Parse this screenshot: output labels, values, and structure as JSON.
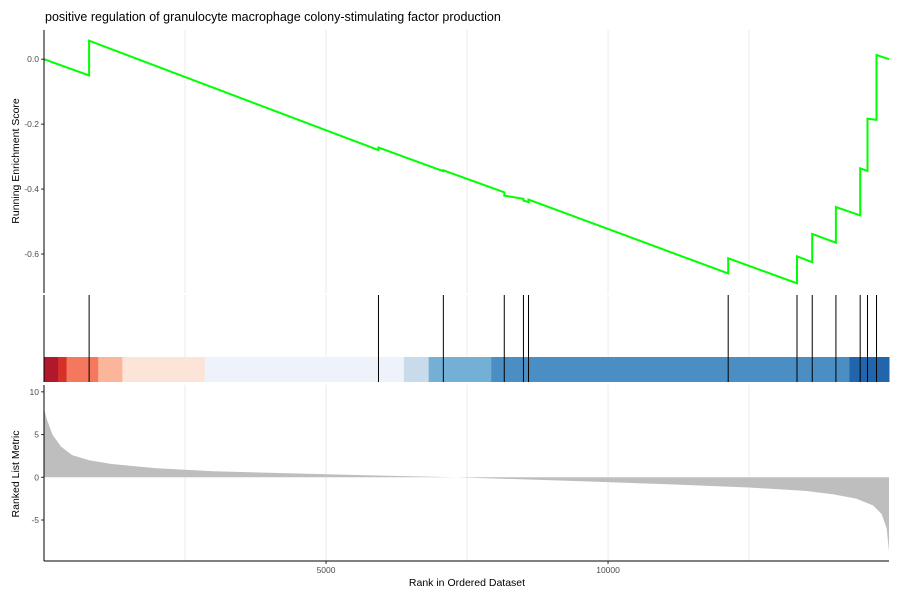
{
  "chart_data": {
    "type": "line",
    "title": "positive regulation of granulocyte macrophage colony-stimulating factor production",
    "xlabel": "Rank in Ordered Dataset",
    "xlim": [
      0,
      14981
    ],
    "xticks": [
      5000,
      10000
    ],
    "grid": true,
    "legend": "none",
    "colors": {
      "running_score": "#00ff00",
      "ranked_metric_fill": "#bebebe",
      "hit_line": "#000000",
      "axis": "#000000",
      "grid": "#ebebeb"
    },
    "enrichment_panel": {
      "ylabel": "Running Enrichment Score",
      "ylim": [
        -0.72,
        0.09
      ],
      "yticks": [
        0.0,
        -0.2,
        -0.4,
        -0.6
      ],
      "ytick_labels": [
        "0.0",
        "-0.2",
        "-0.4",
        "-0.6"
      ],
      "series": [
        {
          "x": [
            0,
            800,
            800,
            5930,
            5930,
            7080,
            7080,
            8160,
            8160,
            8500,
            8500,
            8590,
            8590,
            12130,
            12130,
            13350,
            13350,
            13620,
            13620,
            14040,
            14040,
            14470,
            14470,
            14600,
            14600,
            14760,
            14760,
            14981
          ],
          "y": [
            0.0,
            -0.05,
            0.057,
            -0.28,
            -0.272,
            -0.345,
            -0.342,
            -0.41,
            -0.42,
            -0.43,
            -0.435,
            -0.44,
            -0.432,
            -0.66,
            -0.613,
            -0.69,
            -0.607,
            -0.625,
            -0.538,
            -0.565,
            -0.455,
            -0.481,
            -0.336,
            -0.344,
            -0.183,
            -0.187,
            0.013,
            0.0
          ]
        }
      ]
    },
    "gene_hits": [
      800,
      5930,
      7080,
      8160,
      8500,
      8590,
      12130,
      13350,
      13620,
      14040,
      14470,
      14600,
      14760
    ],
    "rank_color_bar": [
      {
        "start": 0,
        "end": 250,
        "color": "#b2182b"
      },
      {
        "start": 250,
        "end": 400,
        "color": "#d6302b"
      },
      {
        "start": 400,
        "end": 960,
        "color": "#f4775e"
      },
      {
        "start": 960,
        "end": 1390,
        "color": "#fbb59a"
      },
      {
        "start": 1390,
        "end": 2850,
        "color": "#fde4d8"
      },
      {
        "start": 2850,
        "end": 6380,
        "color": "#eef3fb"
      },
      {
        "start": 6380,
        "end": 6820,
        "color": "#c7dbea"
      },
      {
        "start": 6820,
        "end": 7930,
        "color": "#74b0d6"
      },
      {
        "start": 7930,
        "end": 14280,
        "color": "#4a8ec4"
      },
      {
        "start": 14280,
        "end": 14981,
        "color": "#2166ac"
      }
    ],
    "ranked_metric_panel": {
      "ylabel": "Ranked List Metric",
      "ylim": [
        -9.8,
        10.8
      ],
      "yticks": [
        10,
        5,
        0,
        -5
      ],
      "ytick_labels": [
        "10",
        "5",
        "0",
        "-5"
      ],
      "zero_cross_rank": 7300,
      "curve": {
        "x": [
          0,
          50,
          150,
          300,
          500,
          800,
          1200,
          2000,
          3000,
          5000,
          7300,
          9000,
          11000,
          12500,
          13500,
          14000,
          14400,
          14700,
          14850,
          14940,
          14981
        ],
        "y": [
          8.0,
          6.8,
          5.0,
          3.6,
          2.6,
          2.0,
          1.55,
          1.05,
          0.7,
          0.35,
          0.0,
          -0.35,
          -0.8,
          -1.2,
          -1.6,
          -2.0,
          -2.5,
          -3.3,
          -4.3,
          -6.0,
          -8.7
        ]
      }
    }
  }
}
